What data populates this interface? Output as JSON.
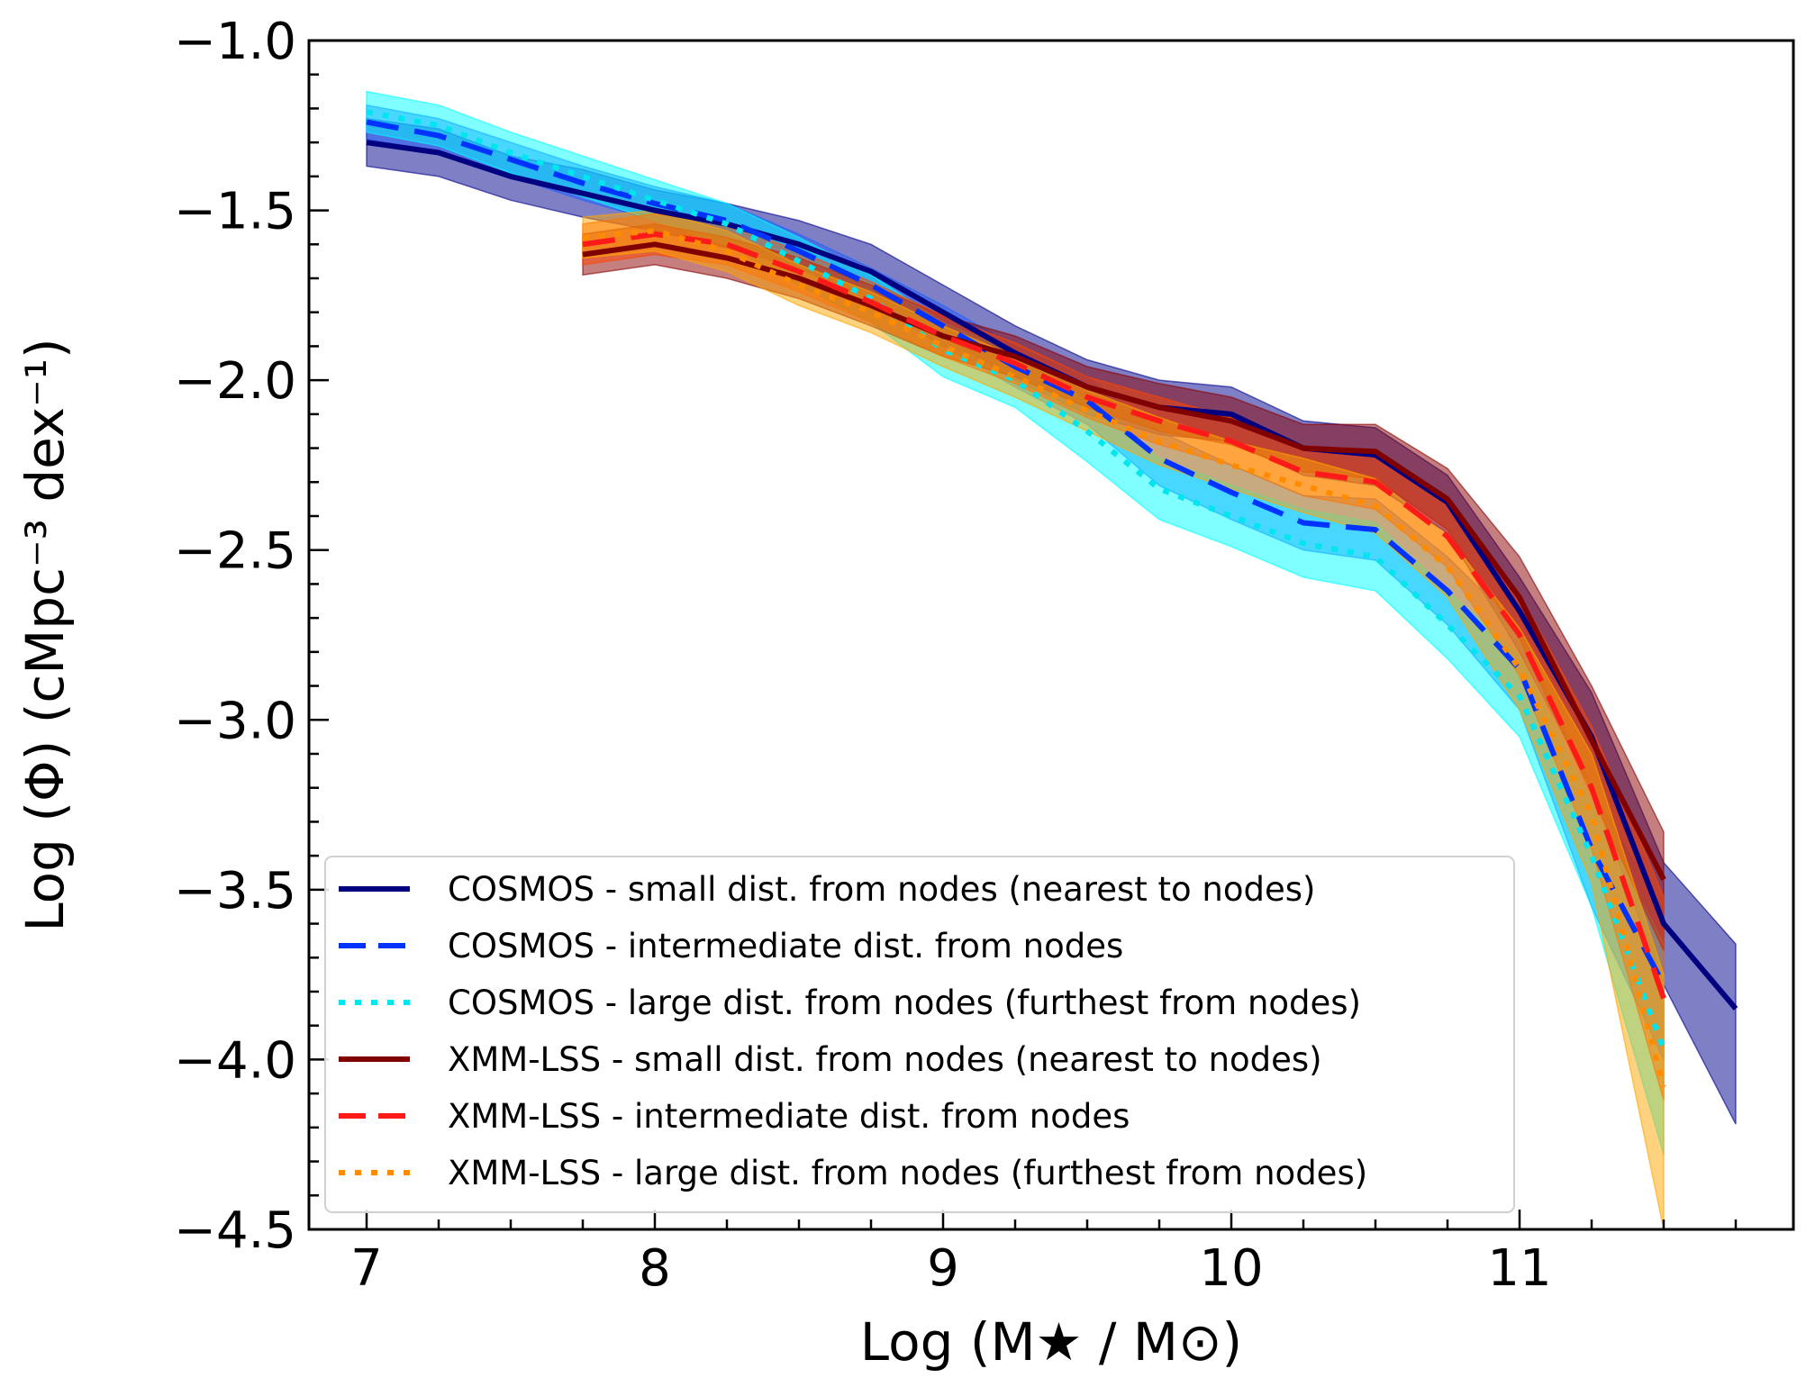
{
  "chart_data": {
    "type": "line",
    "xlabel": "Log (M★ / M⊙)",
    "ylabel": "Log (Φ)  (cMpc⁻³ dex⁻¹)",
    "xlim": [
      6.8,
      11.95
    ],
    "ylim": [
      -4.5,
      -1.0
    ],
    "xticks": [
      7,
      8,
      9,
      10,
      11
    ],
    "xtick_labels": [
      "7",
      "8",
      "9",
      "10",
      "11"
    ],
    "yticks": [
      -1.0,
      -1.5,
      -2.0,
      -2.5,
      -3.0,
      -3.5,
      -4.0,
      -4.5
    ],
    "ytick_labels": [
      "−1.0",
      "−1.5",
      "−2.0",
      "−2.5",
      "−3.0",
      "−3.5",
      "−4.0",
      "−4.5"
    ],
    "legend_position": "lower-left",
    "series": [
      {
        "name": "COSMOS - small dist. from nodes (nearest to nodes)",
        "color": "#000080",
        "fill": "#00008b",
        "style": "solid",
        "x": [
          7.0,
          7.25,
          7.5,
          7.75,
          8.0,
          8.25,
          8.5,
          8.75,
          9.0,
          9.25,
          9.5,
          9.75,
          10.0,
          10.25,
          10.5,
          10.75,
          11.0,
          11.25,
          11.5,
          11.75
        ],
        "y": [
          -1.3,
          -1.33,
          -1.4,
          -1.45,
          -1.5,
          -1.54,
          -1.6,
          -1.68,
          -1.8,
          -1.92,
          -2.02,
          -2.08,
          -2.1,
          -2.2,
          -2.22,
          -2.36,
          -2.68,
          -3.05,
          -3.6,
          -3.85
        ],
        "lower": [
          -1.37,
          -1.4,
          -1.47,
          -1.52,
          -1.56,
          -1.61,
          -1.67,
          -1.76,
          -1.87,
          -2.0,
          -2.1,
          -2.16,
          -2.18,
          -2.28,
          -2.31,
          -2.45,
          -2.8,
          -3.2,
          -3.78,
          -4.19
        ],
        "upper": [
          -1.23,
          -1.26,
          -1.34,
          -1.38,
          -1.44,
          -1.48,
          -1.53,
          -1.6,
          -1.72,
          -1.84,
          -1.94,
          -2.0,
          -2.02,
          -2.12,
          -2.14,
          -2.28,
          -2.58,
          -2.92,
          -3.42,
          -3.66
        ]
      },
      {
        "name": "COSMOS - intermediate dist. from nodes",
        "color": "#0033ff",
        "fill": "#1f5fff",
        "style": "dashed",
        "x": [
          7.0,
          7.25,
          7.5,
          7.75,
          8.0,
          8.25,
          8.5,
          8.75,
          9.0,
          9.25,
          9.5,
          9.75,
          10.0,
          10.25,
          10.5,
          10.75,
          11.0,
          11.25,
          11.5
        ],
        "y": [
          -1.24,
          -1.28,
          -1.35,
          -1.42,
          -1.48,
          -1.53,
          -1.62,
          -1.72,
          -1.84,
          -1.96,
          -2.06,
          -2.23,
          -2.33,
          -2.42,
          -2.44,
          -2.62,
          -2.85,
          -3.38,
          -3.78
        ],
        "lower": [
          -1.29,
          -1.33,
          -1.4,
          -1.47,
          -1.53,
          -1.58,
          -1.67,
          -1.77,
          -1.9,
          -2.02,
          -2.13,
          -2.31,
          -2.41,
          -2.5,
          -2.53,
          -2.72,
          -2.97,
          -3.55,
          -4.0
        ],
        "upper": [
          -1.19,
          -1.23,
          -1.3,
          -1.37,
          -1.43,
          -1.48,
          -1.57,
          -1.67,
          -1.78,
          -1.9,
          -1.99,
          -2.15,
          -2.25,
          -2.34,
          -2.35,
          -2.52,
          -2.73,
          -3.21,
          -3.56
        ]
      },
      {
        "name": "COSMOS - large dist. from nodes (furthest from nodes)",
        "color": "#00e5ee",
        "fill": "#00ffff",
        "style": "dotted",
        "x": [
          7.0,
          7.25,
          7.5,
          7.75,
          8.0,
          8.25,
          8.5,
          8.75,
          9.0,
          9.25,
          9.5,
          9.75,
          10.0,
          10.25,
          10.5,
          10.75,
          11.0,
          11.25,
          11.5
        ],
        "y": [
          -1.21,
          -1.25,
          -1.33,
          -1.4,
          -1.47,
          -1.54,
          -1.65,
          -1.76,
          -1.91,
          -2.0,
          -2.15,
          -2.32,
          -2.4,
          -2.48,
          -2.52,
          -2.72,
          -2.93,
          -3.4,
          -3.97
        ],
        "lower": [
          -1.27,
          -1.31,
          -1.39,
          -1.46,
          -1.53,
          -1.6,
          -1.72,
          -1.83,
          -1.99,
          -2.08,
          -2.24,
          -2.41,
          -2.49,
          -2.58,
          -2.62,
          -2.82,
          -3.05,
          -3.55,
          -4.28
        ],
        "upper": [
          -1.15,
          -1.19,
          -1.27,
          -1.34,
          -1.41,
          -1.48,
          -1.58,
          -1.69,
          -1.83,
          -1.92,
          -2.06,
          -2.23,
          -2.31,
          -2.38,
          -2.42,
          -2.62,
          -2.81,
          -3.25,
          -3.66
        ]
      },
      {
        "name": "XMM-LSS - small dist. from nodes (nearest to nodes)",
        "color": "#800000",
        "fill": "#8b0000",
        "style": "solid",
        "x": [
          7.75,
          8.0,
          8.25,
          8.5,
          8.75,
          9.0,
          9.25,
          9.5,
          9.75,
          10.0,
          10.25,
          10.5,
          10.75,
          11.0,
          11.25,
          11.5
        ],
        "y": [
          -1.63,
          -1.6,
          -1.64,
          -1.7,
          -1.78,
          -1.87,
          -1.93,
          -2.02,
          -2.08,
          -2.12,
          -2.2,
          -2.21,
          -2.35,
          -2.64,
          -3.06,
          -3.47
        ],
        "lower": [
          -1.69,
          -1.66,
          -1.7,
          -1.76,
          -1.84,
          -1.93,
          -1.99,
          -2.08,
          -2.15,
          -2.19,
          -2.27,
          -2.29,
          -2.44,
          -2.76,
          -3.22,
          -3.68
        ],
        "upper": [
          -1.57,
          -1.54,
          -1.58,
          -1.64,
          -1.72,
          -1.81,
          -1.87,
          -1.96,
          -2.01,
          -2.05,
          -2.13,
          -2.13,
          -2.26,
          -2.52,
          -2.9,
          -3.33
        ]
      },
      {
        "name": "XMM-LSS - intermediate dist. from nodes",
        "color": "#ff1a1a",
        "fill": "#ff4500",
        "style": "dashed",
        "x": [
          7.75,
          8.0,
          8.25,
          8.5,
          8.75,
          9.0,
          9.25,
          9.5,
          9.75,
          10.0,
          10.25,
          10.5,
          10.75,
          11.0,
          11.25,
          11.5
        ],
        "y": [
          -1.6,
          -1.57,
          -1.6,
          -1.68,
          -1.77,
          -1.87,
          -1.95,
          -2.05,
          -2.12,
          -2.18,
          -2.27,
          -2.3,
          -2.46,
          -2.75,
          -3.2,
          -3.82
        ],
        "lower": [
          -1.66,
          -1.63,
          -1.66,
          -1.74,
          -1.83,
          -1.93,
          -2.01,
          -2.11,
          -2.19,
          -2.25,
          -2.34,
          -2.38,
          -2.55,
          -2.87,
          -3.38,
          -4.12
        ],
        "upper": [
          -1.54,
          -1.51,
          -1.54,
          -1.62,
          -1.71,
          -1.81,
          -1.89,
          -1.99,
          -2.05,
          -2.11,
          -2.2,
          -2.22,
          -2.37,
          -2.63,
          -3.02,
          -3.52
        ]
      },
      {
        "name": "XMM-LSS - large dist. from nodes (furthest from nodes)",
        "color": "#ff8c00",
        "fill": "#ffa500",
        "style": "dotted",
        "x": [
          7.75,
          8.0,
          8.25,
          8.5,
          8.75,
          9.0,
          9.25,
          9.5,
          9.75,
          10.0,
          10.25,
          10.5,
          10.75,
          11.0,
          11.25,
          11.5
        ],
        "y": [
          -1.58,
          -1.56,
          -1.62,
          -1.72,
          -1.8,
          -1.9,
          -1.99,
          -2.09,
          -2.18,
          -2.25,
          -2.31,
          -2.37,
          -2.55,
          -2.85,
          -3.28,
          -4.08
        ],
        "lower": [
          -1.64,
          -1.62,
          -1.68,
          -1.78,
          -1.86,
          -1.96,
          -2.05,
          -2.15,
          -2.25,
          -2.32,
          -2.39,
          -2.45,
          -2.64,
          -2.97,
          -3.48,
          -4.5
        ],
        "upper": [
          -1.52,
          -1.5,
          -1.56,
          -1.66,
          -1.74,
          -1.84,
          -1.93,
          -2.03,
          -2.11,
          -2.18,
          -2.23,
          -2.29,
          -2.46,
          -2.73,
          -3.1,
          -3.75
        ]
      }
    ]
  }
}
